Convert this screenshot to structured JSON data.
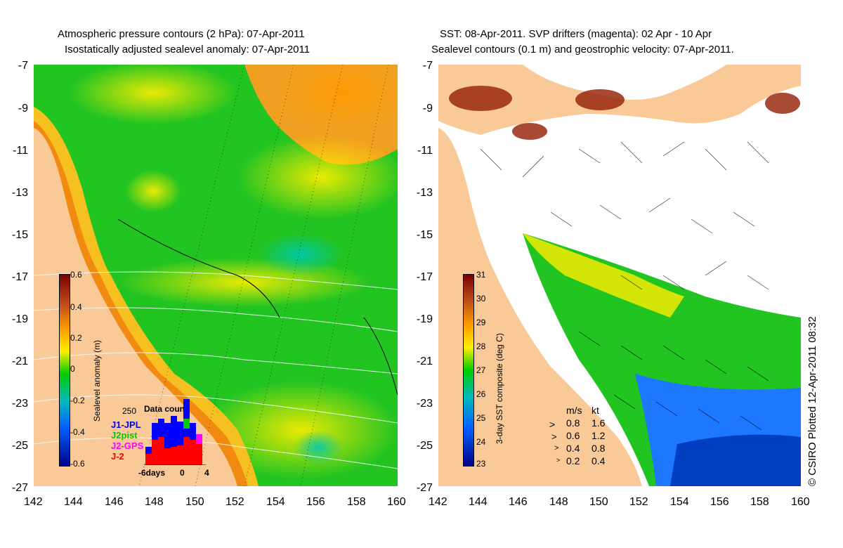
{
  "left_panel": {
    "title_line1": "Atmospheric pressure contours (2 hPa): 07-Apr-2011",
    "title_line2": "Isostatically adjusted sealevel anomaly: 07-Apr-2011",
    "colorbar": {
      "label": "Sealevel anomaly (m)",
      "ticks": [
        "0.6",
        "0.4",
        "0.2",
        "0",
        "-0.2",
        "-0.4",
        "-0.6"
      ]
    },
    "data_count": {
      "title": "Data count",
      "max": "250",
      "series": [
        {
          "name": "J1-JPL",
          "color": "#0000ff"
        },
        {
          "name": "J2pist",
          "color": "#00cc00"
        },
        {
          "name": "J2-GPS",
          "color": "#ff00ff"
        },
        {
          "name": "J-2",
          "color": "#ff0000"
        }
      ],
      "x_labels": [
        "-6days",
        "0",
        "4"
      ]
    }
  },
  "right_panel": {
    "title_line1": "SST: 08-Apr-2011. SVP drifters (magenta): 02 Apr - 10 Apr",
    "title_line2": "Sealevel contours (0.1 m) and geostrophic velocity: 07-Apr-2011.",
    "colorbar": {
      "label": "3-day SST composite (deg C)",
      "ticks": [
        "31",
        "30",
        "29",
        "28",
        "27",
        "26",
        "25",
        "24",
        "23"
      ]
    },
    "velocity_legend": {
      "header_ms": "m/s",
      "header_kt": "kt",
      "rows": [
        {
          "ms": "0.8",
          "kt": "1.6"
        },
        {
          "ms": "0.6",
          "kt": "1.2"
        },
        {
          "ms": "0.4",
          "kt": "0.8"
        },
        {
          "ms": "0.2",
          "kt": "0.4"
        }
      ]
    }
  },
  "axes": {
    "y_labels": [
      "-7",
      "-9",
      "-11",
      "-13",
      "-15",
      "-17",
      "-19",
      "-21",
      "-23",
      "-25",
      "-27"
    ],
    "x_labels": [
      "142",
      "144",
      "146",
      "148",
      "150",
      "152",
      "154",
      "156",
      "158",
      "160"
    ]
  },
  "credit": "© CSIRO Plotted 12-Apr-2011 08:32",
  "colors": {
    "land": "#f9c997",
    "sla_ramp": [
      "#7a0000",
      "#c0501a",
      "#ff9a00",
      "#ffee00",
      "#00cc00",
      "#00bbbb",
      "#0060ff",
      "#00008b"
    ],
    "sst_ramp": [
      "#7a0000",
      "#c0501a",
      "#ff9a00",
      "#ffee00",
      "#00cc00",
      "#00bbbb",
      "#0060ff",
      "#00008b"
    ]
  }
}
